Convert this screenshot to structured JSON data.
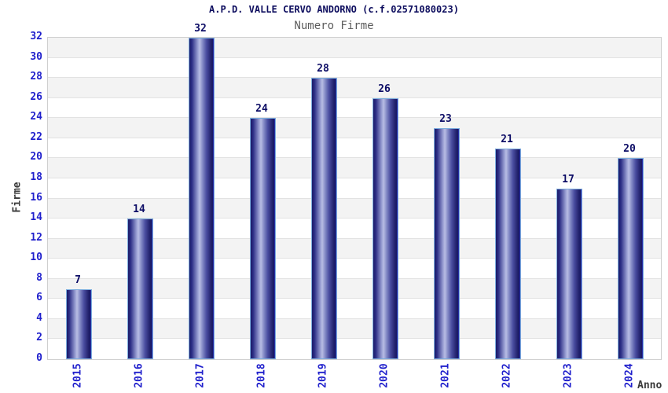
{
  "header": {
    "title": "A.P.D. VALLE CERVO ANDORNO (c.f.02571080023)",
    "subtitle": "Numero Firme"
  },
  "chart_data": {
    "type": "bar",
    "title": "A.P.D. VALLE CERVO ANDORNO (c.f.02571080023)",
    "subtitle": "Numero Firme",
    "xlabel": "Anno",
    "ylabel": "Firme",
    "categories": [
      "2015",
      "2016",
      "2017",
      "2018",
      "2019",
      "2020",
      "2021",
      "2022",
      "2023",
      "2024"
    ],
    "values": [
      7,
      14,
      32,
      24,
      28,
      26,
      23,
      21,
      17,
      20
    ],
    "ylim": [
      0,
      32
    ],
    "ytick_step": 2,
    "yticks": [
      0,
      2,
      4,
      6,
      8,
      10,
      12,
      14,
      16,
      18,
      20,
      22,
      24,
      26,
      28,
      30,
      32
    ],
    "grid": "horizontal gridlines with alternating gray/white bands",
    "legend_position": "none",
    "bar_value_labels": true
  },
  "colors": {
    "title_text": "#0d0d5e",
    "subtitle_text": "#5c5c5c",
    "tick_label": "#2020cc",
    "value_label": "#0d0d66",
    "axis_title": "#3a3a3a",
    "bar_dark": "#1b1b68",
    "bar_light": "#b8bde4",
    "bar_edge_highlight": "#2e3bd4",
    "bar_border": "#7cadde",
    "band_gray": "#f3f3f3",
    "band_white": "#ffffff",
    "gridline": "#e2e2e2",
    "plot_border": "#cfcfcf"
  }
}
